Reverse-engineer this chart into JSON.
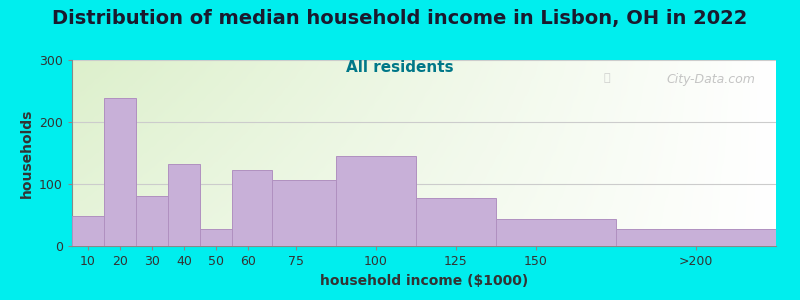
{
  "title": "Distribution of median household income in Lisbon, OH in 2022",
  "subtitle": "All residents",
  "xlabel": "household income ($1000)",
  "ylabel": "households",
  "background_outer": "#00EEEE",
  "background_inner_left": "#ddf0cc",
  "background_inner_right": "#ffffff",
  "bar_color": "#c8b0d8",
  "bar_edge_color": "#b090c0",
  "tick_labels": [
    "10",
    "20",
    "30",
    "40",
    "50",
    "60",
    "75",
    "100",
    "125",
    "150",
    ">200"
  ],
  "bin_edges": [
    5,
    15,
    25,
    35,
    45,
    55,
    67.5,
    87.5,
    112.5,
    137.5,
    175,
    225
  ],
  "values": [
    48,
    238,
    80,
    132,
    27,
    123,
    107,
    145,
    77,
    43,
    27
  ],
  "tick_positions": [
    10,
    20,
    30,
    40,
    50,
    60,
    75,
    100,
    125,
    150,
    200
  ],
  "ylim": [
    0,
    300
  ],
  "yticks": [
    0,
    100,
    200,
    300
  ],
  "xlim": [
    5,
    225
  ],
  "watermark": "City-Data.com",
  "title_fontsize": 14,
  "subtitle_fontsize": 11,
  "axis_label_fontsize": 10,
  "tick_fontsize": 9
}
